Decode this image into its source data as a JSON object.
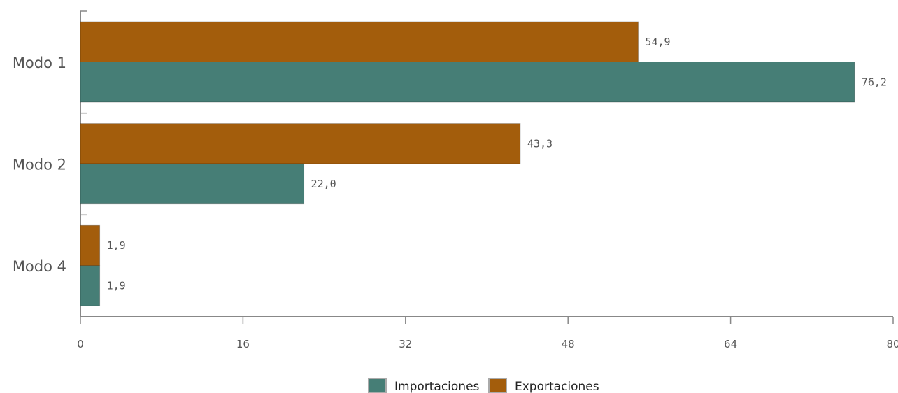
{
  "chart_data": {
    "type": "bar",
    "orientation": "horizontal",
    "categories": [
      "Modo 1",
      "Modo 2",
      "Modo 4"
    ],
    "series": [
      {
        "name": "Exportaciones",
        "values": [
          54.9,
          43.3,
          1.9
        ],
        "value_labels": [
          "54,9",
          "43,3",
          "1,9"
        ],
        "color": "#A35D0C"
      },
      {
        "name": "Importaciones",
        "values": [
          76.2,
          22.0,
          1.9
        ],
        "value_labels": [
          "76,2",
          "22,0",
          "1,9"
        ],
        "color": "#467E76"
      }
    ],
    "xlim": [
      0,
      80
    ],
    "xticks": [
      0,
      16,
      32,
      48,
      64,
      80
    ],
    "xtick_labels": [
      "0",
      "16",
      "32",
      "48",
      "64",
      "80"
    ],
    "grid": false,
    "legend": {
      "position": "bottom-center",
      "items": [
        {
          "name": "Importaciones",
          "color": "#467E76"
        },
        {
          "name": "Exportaciones",
          "color": "#A35D0C"
        }
      ]
    },
    "axis_color": "#888888"
  }
}
